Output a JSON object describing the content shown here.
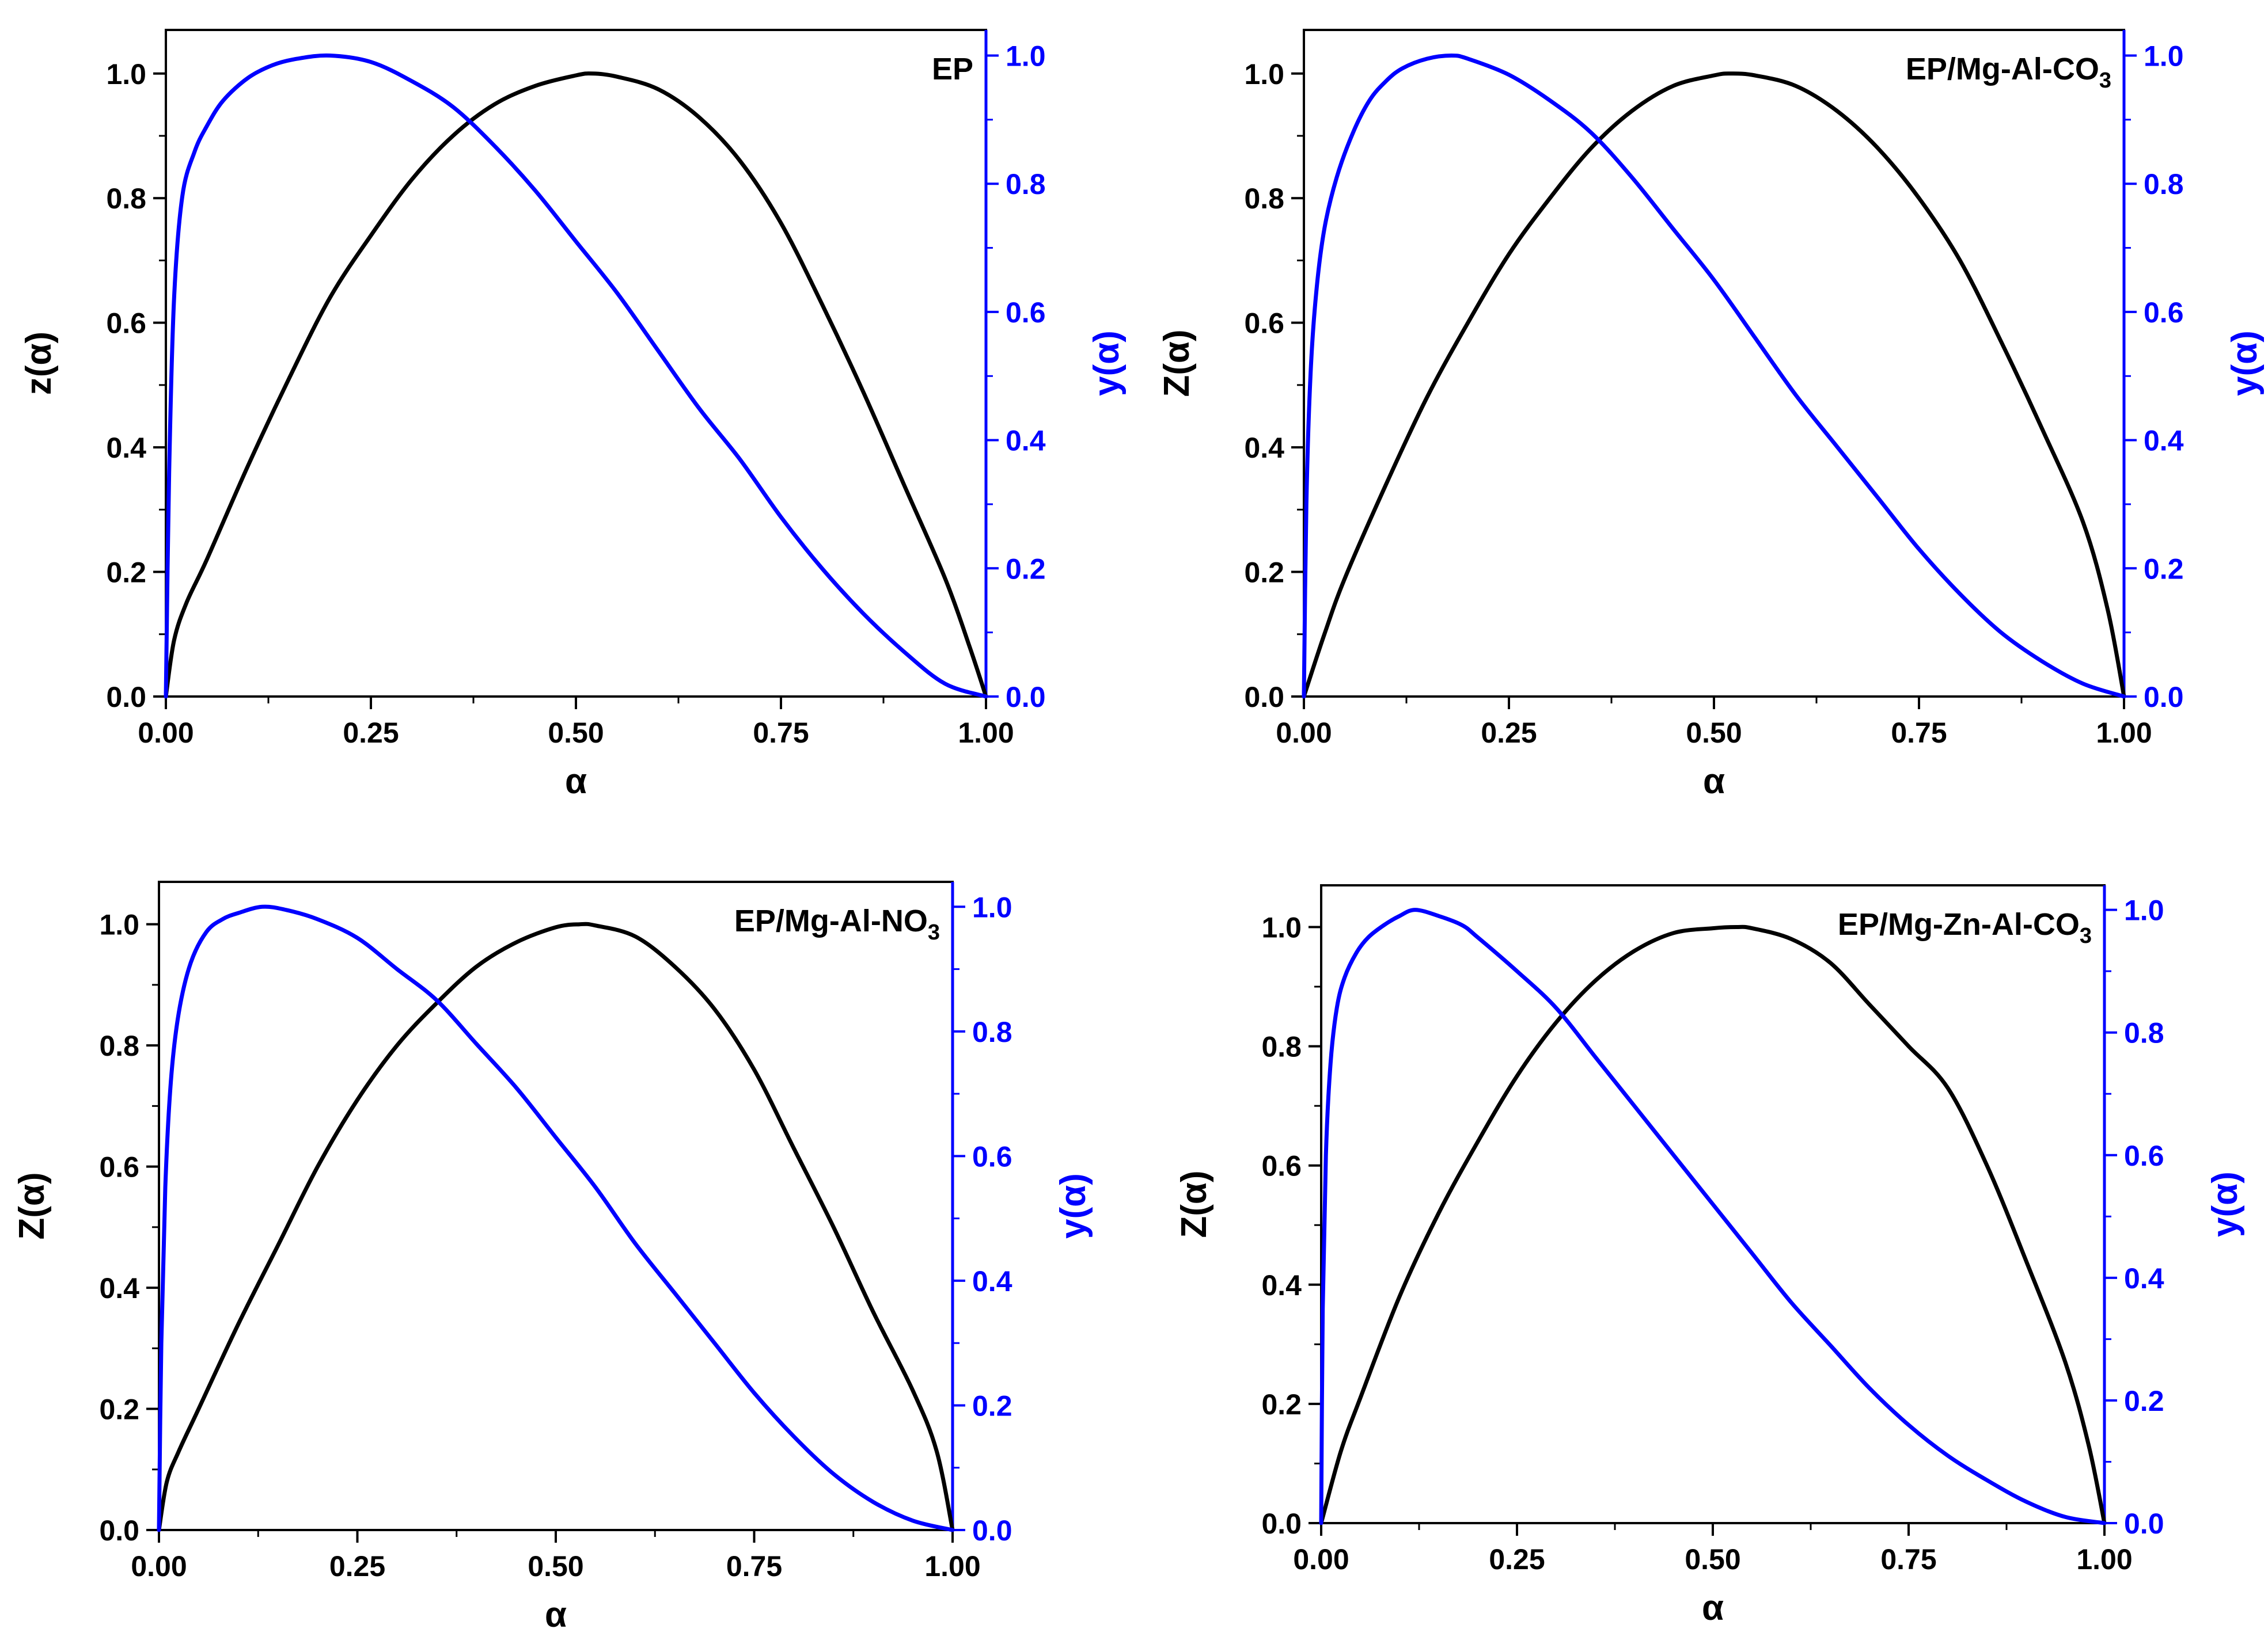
{
  "colors": {
    "z_curve": "#000000",
    "y_curve": "#0000ff",
    "left_axis": "#000000",
    "right_axis": "#0000ff"
  },
  "chart_data": [
    {
      "type": "line",
      "label": {
        "base": "EP",
        "sub": ""
      },
      "xlabel": "α",
      "ylabel": "z(α)",
      "y2label": "y(α)",
      "xlim": [
        0,
        1
      ],
      "ylim": [
        0,
        1.07
      ],
      "y2lim": [
        0,
        1.04
      ],
      "xticks": [
        "0.00",
        "0.25",
        "0.50",
        "0.75",
        "1.00"
      ],
      "yticks": [
        "0.0",
        "0.2",
        "0.4",
        "0.6",
        "0.8",
        "1.0"
      ],
      "y2ticks": [
        "0.0",
        "0.2",
        "0.4",
        "0.6",
        "0.8",
        "1.0"
      ],
      "grid": false,
      "series": [
        {
          "name": "z(α)",
          "axis": "left",
          "x": [
            0,
            0.01,
            0.025,
            0.05,
            0.1,
            0.15,
            0.2,
            0.25,
            0.3,
            0.35,
            0.4,
            0.45,
            0.5,
            0.52,
            0.55,
            0.6,
            0.65,
            0.7,
            0.75,
            0.8,
            0.85,
            0.9,
            0.95,
            0.98,
            1.0
          ],
          "y": [
            0,
            0.09,
            0.15,
            0.22,
            0.37,
            0.51,
            0.64,
            0.74,
            0.83,
            0.9,
            0.95,
            0.98,
            0.997,
            1.0,
            0.995,
            0.975,
            0.93,
            0.86,
            0.76,
            0.63,
            0.49,
            0.34,
            0.19,
            0.08,
            0
          ]
        },
        {
          "name": "y(α)",
          "axis": "right",
          "x": [
            0,
            0.004,
            0.01,
            0.02,
            0.035,
            0.05,
            0.07,
            0.1,
            0.13,
            0.16,
            0.2,
            0.25,
            0.3,
            0.35,
            0.4,
            0.45,
            0.5,
            0.55,
            0.6,
            0.65,
            0.7,
            0.75,
            0.8,
            0.85,
            0.9,
            0.95,
            1.0
          ],
          "y": [
            0,
            0.35,
            0.62,
            0.78,
            0.85,
            0.89,
            0.93,
            0.965,
            0.985,
            0.995,
            1.0,
            0.99,
            0.96,
            0.92,
            0.86,
            0.79,
            0.71,
            0.63,
            0.54,
            0.45,
            0.37,
            0.28,
            0.2,
            0.13,
            0.07,
            0.02,
            0
          ]
        }
      ]
    },
    {
      "type": "line",
      "label": {
        "base": "EP/Mg-Al-CO",
        "sub": "3"
      },
      "xlabel": "α",
      "ylabel": "Z(α)",
      "y2label": "y(α)",
      "xlim": [
        0,
        1
      ],
      "ylim": [
        0,
        1.07
      ],
      "y2lim": [
        0,
        1.04
      ],
      "xticks": [
        "0.00",
        "0.25",
        "0.50",
        "0.75",
        "1.00"
      ],
      "yticks": [
        "0.0",
        "0.2",
        "0.4",
        "0.6",
        "0.8",
        "1.0"
      ],
      "y2ticks": [
        "0.0",
        "0.2",
        "0.4",
        "0.6",
        "0.8",
        "1.0"
      ],
      "grid": false,
      "series": [
        {
          "name": "Z(α)",
          "axis": "left",
          "x": [
            0,
            0.025,
            0.05,
            0.1,
            0.15,
            0.2,
            0.25,
            0.3,
            0.35,
            0.4,
            0.45,
            0.5,
            0.52,
            0.55,
            0.6,
            0.65,
            0.7,
            0.75,
            0.8,
            0.85,
            0.9,
            0.95,
            0.98,
            1.0
          ],
          "y": [
            0,
            0.1,
            0.19,
            0.34,
            0.48,
            0.6,
            0.71,
            0.8,
            0.88,
            0.94,
            0.98,
            0.997,
            1.0,
            0.997,
            0.98,
            0.94,
            0.88,
            0.8,
            0.7,
            0.57,
            0.43,
            0.28,
            0.14,
            0
          ]
        },
        {
          "name": "y(α)",
          "axis": "right",
          "x": [
            0,
            0.003,
            0.008,
            0.015,
            0.025,
            0.04,
            0.06,
            0.08,
            0.1,
            0.12,
            0.15,
            0.18,
            0.2,
            0.25,
            0.3,
            0.35,
            0.4,
            0.45,
            0.5,
            0.55,
            0.6,
            0.65,
            0.7,
            0.75,
            0.8,
            0.85,
            0.9,
            0.95,
            1.0
          ],
          "y": [
            0,
            0.3,
            0.5,
            0.63,
            0.73,
            0.81,
            0.88,
            0.93,
            0.96,
            0.98,
            0.995,
            1.0,
            0.995,
            0.97,
            0.93,
            0.88,
            0.81,
            0.73,
            0.65,
            0.56,
            0.47,
            0.39,
            0.31,
            0.23,
            0.16,
            0.1,
            0.055,
            0.02,
            0
          ]
        }
      ]
    },
    {
      "type": "line",
      "label": {
        "base": "EP/Mg-Al-NO",
        "sub": "3"
      },
      "xlabel": "α",
      "ylabel": "Z(α)",
      "y2label": "y(α)",
      "xlim": [
        0,
        1
      ],
      "ylim": [
        0,
        1.07
      ],
      "y2lim": [
        0,
        1.04
      ],
      "xticks": [
        "0.00",
        "0.25",
        "0.50",
        "0.75",
        "1.00"
      ],
      "yticks": [
        "0.0",
        "0.2",
        "0.4",
        "0.6",
        "0.8",
        "1.0"
      ],
      "y2ticks": [
        "0.0",
        "0.2",
        "0.4",
        "0.6",
        "0.8",
        "1.0"
      ],
      "grid": false,
      "series": [
        {
          "name": "Z(α)",
          "axis": "left",
          "x": [
            0,
            0.01,
            0.025,
            0.05,
            0.1,
            0.15,
            0.2,
            0.25,
            0.3,
            0.35,
            0.4,
            0.45,
            0.5,
            0.53,
            0.55,
            0.6,
            0.65,
            0.7,
            0.75,
            0.8,
            0.85,
            0.9,
            0.95,
            0.98,
            1.0
          ],
          "y": [
            0,
            0.08,
            0.13,
            0.2,
            0.34,
            0.47,
            0.6,
            0.71,
            0.8,
            0.87,
            0.93,
            0.97,
            0.995,
            1.0,
            0.998,
            0.98,
            0.93,
            0.86,
            0.76,
            0.63,
            0.5,
            0.36,
            0.23,
            0.13,
            0
          ]
        },
        {
          "name": "y(α)",
          "axis": "right",
          "x": [
            0,
            0.003,
            0.008,
            0.015,
            0.025,
            0.04,
            0.06,
            0.08,
            0.1,
            0.13,
            0.16,
            0.2,
            0.25,
            0.3,
            0.35,
            0.4,
            0.45,
            0.5,
            0.55,
            0.6,
            0.65,
            0.7,
            0.75,
            0.8,
            0.85,
            0.9,
            0.95,
            1.0
          ],
          "y": [
            0,
            0.3,
            0.55,
            0.72,
            0.83,
            0.91,
            0.96,
            0.98,
            0.99,
            1.0,
            0.995,
            0.98,
            0.95,
            0.9,
            0.85,
            0.78,
            0.71,
            0.63,
            0.55,
            0.46,
            0.38,
            0.3,
            0.22,
            0.15,
            0.09,
            0.045,
            0.015,
            0
          ]
        }
      ]
    },
    {
      "type": "line",
      "label": {
        "base": "EP/Mg-Zn-Al-CO",
        "sub": "3"
      },
      "xlabel": "α",
      "ylabel": "Z(α)",
      "y2label": "y(α)",
      "xlim": [
        0,
        1
      ],
      "ylim": [
        0,
        1.07
      ],
      "y2lim": [
        0,
        1.04
      ],
      "xticks": [
        "0.00",
        "0.25",
        "0.50",
        "0.75",
        "1.00"
      ],
      "yticks": [
        "0.0",
        "0.2",
        "0.4",
        "0.6",
        "0.8",
        "1.0"
      ],
      "y2ticks": [
        "0.0",
        "0.2",
        "0.4",
        "0.6",
        "0.8",
        "1.0"
      ],
      "grid": false,
      "series": [
        {
          "name": "Z(α)",
          "axis": "left",
          "x": [
            0,
            0.025,
            0.05,
            0.1,
            0.15,
            0.2,
            0.25,
            0.3,
            0.35,
            0.4,
            0.45,
            0.5,
            0.53,
            0.55,
            0.6,
            0.65,
            0.7,
            0.75,
            0.8,
            0.85,
            0.9,
            0.95,
            0.98,
            1.0
          ],
          "y": [
            0,
            0.12,
            0.21,
            0.38,
            0.52,
            0.64,
            0.75,
            0.84,
            0.91,
            0.96,
            0.99,
            0.998,
            1.0,
            0.998,
            0.98,
            0.94,
            0.87,
            0.8,
            0.73,
            0.6,
            0.44,
            0.27,
            0.13,
            0
          ]
        },
        {
          "name": "y(α)",
          "axis": "right",
          "x": [
            0,
            0.002,
            0.006,
            0.012,
            0.02,
            0.03,
            0.045,
            0.06,
            0.08,
            0.1,
            0.12,
            0.15,
            0.18,
            0.2,
            0.25,
            0.3,
            0.35,
            0.4,
            0.45,
            0.5,
            0.55,
            0.6,
            0.65,
            0.7,
            0.75,
            0.8,
            0.85,
            0.9,
            0.95,
            1.0
          ],
          "y": [
            0,
            0.35,
            0.6,
            0.75,
            0.84,
            0.89,
            0.93,
            0.955,
            0.975,
            0.99,
            1.0,
            0.99,
            0.975,
            0.955,
            0.9,
            0.84,
            0.76,
            0.68,
            0.6,
            0.52,
            0.44,
            0.36,
            0.29,
            0.22,
            0.16,
            0.11,
            0.07,
            0.035,
            0.01,
            0
          ]
        }
      ]
    }
  ]
}
